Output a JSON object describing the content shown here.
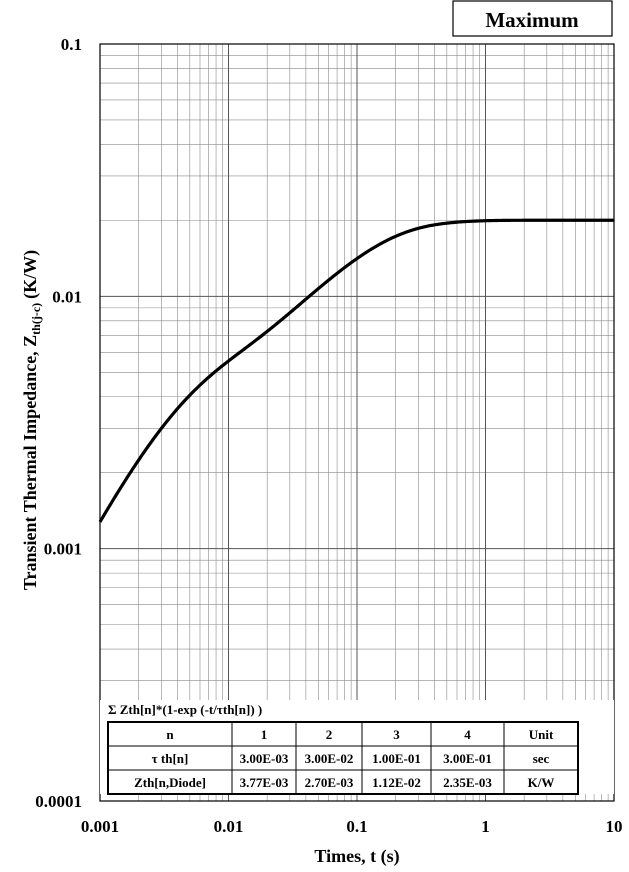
{
  "badge": "Maximum",
  "formula": "Σ Zth[n]*(1-exp (-t/τth[n]) )",
  "params_table": {
    "header": [
      "n",
      "1",
      "2",
      "3",
      "4",
      "Unit"
    ],
    "rows": [
      [
        "τ th[n]",
        "3.00E-03",
        "3.00E-02",
        "1.00E-01",
        "3.00E-01",
        "sec"
      ],
      [
        "Zth[n,Diode]",
        "3.77E-03",
        "2.70E-03",
        "1.12E-02",
        "2.35E-03",
        "K/W"
      ]
    ]
  },
  "chart_data": {
    "type": "line",
    "xlabel": "Times, t (s)",
    "ylabel_main": "Transient Thermal Impedance, Z",
    "ylabel_sub": "th(j-c)",
    "ylabel_unit": "(K/W)",
    "xscale": "log",
    "yscale": "log",
    "xlim": [
      0.001,
      10
    ],
    "ylim": [
      0.0001,
      0.1
    ],
    "x_ticks": [
      "0.001",
      "0.01",
      "0.1",
      "1",
      "10"
    ],
    "y_ticks": [
      "0.0001",
      "0.001",
      "0.01",
      "0.1"
    ],
    "grid": true,
    "series": [
      {
        "tau": [
          0.003,
          0.03,
          0.1,
          0.3
        ],
        "r": [
          0.00377,
          0.0027,
          0.0112,
          0.00235
        ],
        "color": "#000000"
      }
    ]
  }
}
